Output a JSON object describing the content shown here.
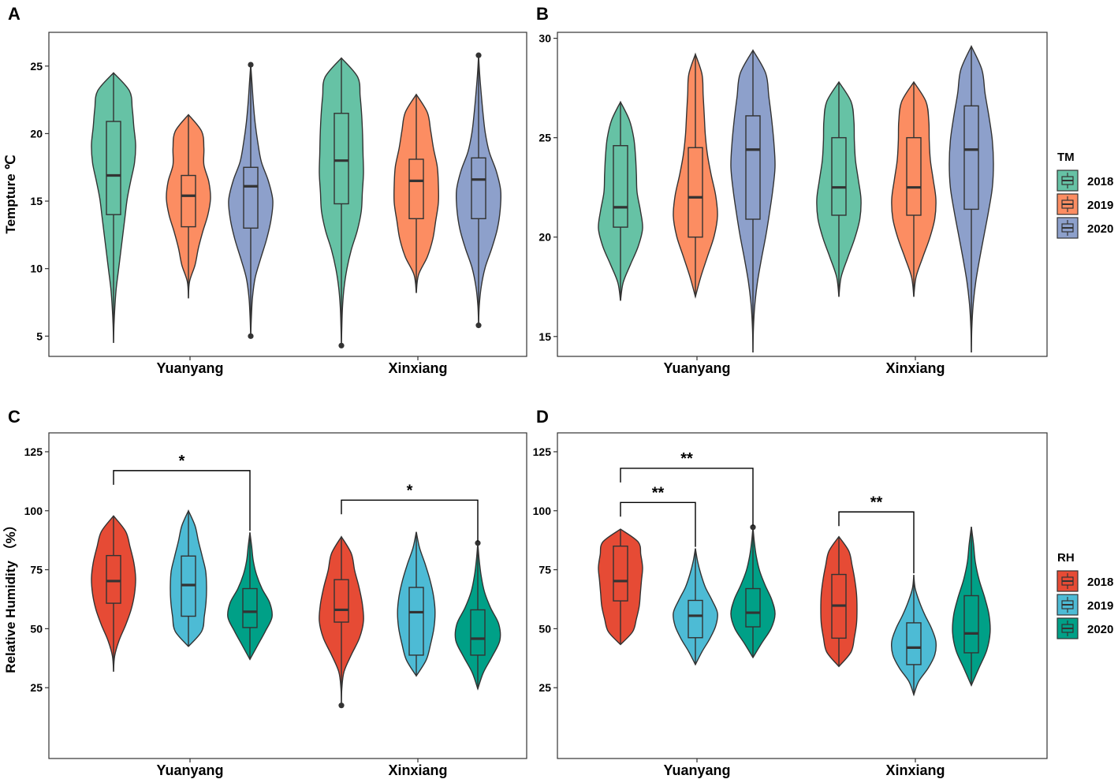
{
  "chart_data": [
    {
      "panel": "A",
      "type": "violin",
      "title": "",
      "ylabel": "Tempture ℃",
      "xlabel": "",
      "ylim": [
        3.5,
        27.5
      ],
      "yticks": [
        5,
        10,
        15,
        20,
        25
      ],
      "categories": [
        "Yuanyang",
        "Xinxiang"
      ],
      "legend_group": "TM",
      "series": [
        {
          "name": "2018",
          "color": "#66C2A5",
          "groups": [
            {
              "category": "Yuanyang",
              "min": 4.5,
              "q1": 14.0,
              "median": 16.9,
              "q3": 20.9,
              "max": 24.5,
              "outliers": [],
              "density": [
                0.02,
                0.06,
                0.12,
                0.22,
                0.32,
                0.42,
                0.52,
                0.62,
                0.78,
                0.95,
                1.0,
                0.92,
                0.85,
                0.72
              ]
            },
            {
              "category": "Xinxiang",
              "min": 4.3,
              "q1": 14.8,
              "median": 18.0,
              "q3": 21.5,
              "max": 25.6,
              "outliers": [
                4.3
              ],
              "density": [
                0.02,
                0.05,
                0.12,
                0.25,
                0.45,
                0.72,
                0.9,
                0.95,
                1.0,
                0.98,
                0.96,
                0.92,
                0.85,
                0.74
              ]
            }
          ]
        },
        {
          "name": "2019",
          "color": "#FC8D62",
          "groups": [
            {
              "category": "Yuanyang",
              "min": 7.8,
              "q1": 13.1,
              "median": 15.4,
              "q3": 16.9,
              "max": 21.4,
              "outliers": [],
              "density": [
                0.05,
                0.3,
                0.45,
                0.65,
                0.88,
                1.0,
                0.92,
                0.7,
                0.7,
                0.6
              ]
            },
            {
              "category": "Xinxiang",
              "min": 8.2,
              "q1": 13.7,
              "median": 16.5,
              "q3": 18.1,
              "max": 22.9,
              "outliers": [],
              "density": [
                0.1,
                0.5,
                0.75,
                0.88,
                1.0,
                1.0,
                0.95,
                0.78,
                0.65,
                0.5
              ]
            }
          ]
        },
        {
          "name": "2020",
          "color": "#8DA0CB",
          "groups": [
            {
              "category": "Yuanyang",
              "min": 5.0,
              "q1": 13.0,
              "median": 16.1,
              "q3": 17.5,
              "max": 25.1,
              "outliers": [
                5.0,
                25.1
              ],
              "density": [
                0.03,
                0.08,
                0.2,
                0.45,
                0.72,
                0.92,
                1.0,
                0.8,
                0.48,
                0.32,
                0.2,
                0.12,
                0.06
              ]
            },
            {
              "category": "Xinxiang",
              "min": 5.8,
              "q1": 13.7,
              "median": 16.6,
              "q3": 18.2,
              "max": 25.8,
              "outliers": [
                5.8,
                25.8
              ],
              "density": [
                0.03,
                0.12,
                0.3,
                0.6,
                0.85,
                0.98,
                1.0,
                0.8,
                0.48,
                0.3,
                0.2,
                0.12,
                0.05
              ]
            }
          ]
        }
      ]
    },
    {
      "panel": "B",
      "type": "violin",
      "title": "",
      "ylabel": "",
      "xlabel": "",
      "ylim": [
        14.0,
        30.3
      ],
      "yticks": [
        15,
        20,
        25,
        30
      ],
      "categories": [
        "Yuanyang",
        "Xinxiang"
      ],
      "legend_group": "TM",
      "series": [
        {
          "name": "2018",
          "color": "#66C2A5",
          "groups": [
            {
              "category": "Yuanyang",
              "min": 16.8,
              "q1": 20.5,
              "median": 21.5,
              "q3": 24.6,
              "max": 26.8,
              "outliers": [],
              "density": [
                0.12,
                0.45,
                0.8,
                1.0,
                0.9,
                0.75,
                0.72,
                0.68,
                0.6,
                0.4
              ]
            },
            {
              "category": "Xinxiang",
              "min": 17.0,
              "q1": 21.1,
              "median": 22.5,
              "q3": 25.0,
              "max": 27.8,
              "outliers": [],
              "density": [
                0.1,
                0.4,
                0.72,
                0.95,
                1.0,
                0.88,
                0.75,
                0.7,
                0.68,
                0.55
              ]
            }
          ]
        },
        {
          "name": "2019",
          "color": "#FC8D62",
          "groups": [
            {
              "category": "Yuanyang",
              "min": 17.0,
              "q1": 20.0,
              "median": 22.0,
              "q3": 24.5,
              "max": 29.2,
              "outliers": [],
              "density": [
                0.25,
                0.55,
                0.85,
                1.0,
                0.92,
                0.72,
                0.55,
                0.45,
                0.4,
                0.35,
                0.3
              ]
            },
            {
              "category": "Xinxiang",
              "min": 17.0,
              "q1": 21.1,
              "median": 22.5,
              "q3": 25.0,
              "max": 27.8,
              "outliers": [],
              "density": [
                0.1,
                0.4,
                0.72,
                0.95,
                1.0,
                0.88,
                0.75,
                0.7,
                0.68,
                0.55
              ]
            }
          ]
        },
        {
          "name": "2020",
          "color": "#8DA0CB",
          "groups": [
            {
              "category": "Yuanyang",
              "min": 14.2,
              "q1": 20.9,
              "median": 24.4,
              "q3": 26.1,
              "max": 29.4,
              "outliers": [],
              "density": [
                0.02,
                0.08,
                0.2,
                0.38,
                0.58,
                0.75,
                0.9,
                1.0,
                0.95,
                0.85,
                0.72,
                0.58
              ]
            },
            {
              "category": "Xinxiang",
              "min": 14.2,
              "q1": 21.4,
              "median": 24.4,
              "q3": 26.6,
              "max": 29.6,
              "outliers": [],
              "density": [
                0.02,
                0.08,
                0.2,
                0.38,
                0.58,
                0.78,
                0.95,
                1.0,
                0.95,
                0.8,
                0.62,
                0.48
              ]
            }
          ]
        }
      ]
    },
    {
      "panel": "C",
      "type": "violin",
      "title": "",
      "ylabel": "Relative Humidity （%）",
      "xlabel": "",
      "ylim": [
        -5,
        133
      ],
      "yticks": [
        25,
        50,
        75,
        100,
        125
      ],
      "categories": [
        "Yuanyang",
        "Xinxiang"
      ],
      "legend_group": "RH",
      "series": [
        {
          "name": "2018",
          "color": "#E64B35",
          "groups": [
            {
              "category": "Yuanyang",
              "min": 31.8,
              "q1": 60.8,
              "median": 70.2,
              "q3": 81.0,
              "max": 97.8,
              "outliers": [],
              "density": [
                0.05,
                0.25,
                0.55,
                0.8,
                0.95,
                1.0,
                0.92,
                0.75,
                0.55
              ]
            },
            {
              "category": "Xinxiang",
              "min": 17.5,
              "q1": 52.8,
              "median": 58.0,
              "q3": 70.8,
              "max": 89.0,
              "outliers": [
                17.5
              ],
              "density": [
                0.02,
                0.12,
                0.45,
                0.82,
                1.0,
                0.95,
                0.8,
                0.6,
                0.45
              ]
            }
          ]
        },
        {
          "name": "2019",
          "color": "#4DBBD5",
          "groups": [
            {
              "category": "Yuanyang",
              "min": 42.5,
              "q1": 55.3,
              "median": 68.5,
              "q3": 80.8,
              "max": 100.0,
              "outliers": [],
              "density": [
                0.6,
                0.72,
                0.8,
                0.82,
                0.78,
                0.62,
                0.45,
                0.3
              ]
            },
            {
              "category": "Xinxiang",
              "min": 30.0,
              "q1": 38.8,
              "median": 57.0,
              "q3": 67.5,
              "max": 91.0,
              "outliers": [],
              "density": [
                0.45,
                0.65,
                0.8,
                0.85,
                0.78,
                0.62,
                0.4,
                0.15
              ]
            }
          ]
        },
        {
          "name": "2020",
          "color": "#00A087",
          "groups": [
            {
              "category": "Yuanyang",
              "min": 37.0,
              "q1": 50.5,
              "median": 57.2,
              "q3": 67.0,
              "max": 90.8,
              "outliers": [],
              "density": [
                0.35,
                0.7,
                1.0,
                0.9,
                0.55,
                0.3,
                0.15,
                0.08
              ]
            },
            {
              "category": "Xinxiang",
              "min": 24.5,
              "q1": 38.8,
              "median": 45.8,
              "q3": 58.0,
              "max": 86.3,
              "outliers": [
                86.3
              ],
              "density": [
                0.25,
                0.65,
                1.0,
                0.95,
                0.58,
                0.3,
                0.15,
                0.06
              ]
            }
          ]
        }
      ],
      "annotations": [
        {
          "label": "*",
          "category": "Yuanyang",
          "from": "2018",
          "to": "2020",
          "level": 117
        },
        {
          "label": "*",
          "category": "Xinxiang",
          "from": "2018",
          "to": "2020",
          "level": 104.5
        }
      ]
    },
    {
      "panel": "D",
      "type": "violin",
      "title": "",
      "ylabel": "",
      "xlabel": "",
      "ylim": [
        -5,
        133
      ],
      "yticks": [
        25,
        50,
        75,
        100,
        125
      ],
      "categories": [
        "Yuanyang",
        "Xinxiang"
      ],
      "legend_group": "RH",
      "series": [
        {
          "name": "2018",
          "color": "#E64B35",
          "groups": [
            {
              "category": "Yuanyang",
              "min": 43.3,
              "q1": 61.8,
              "median": 70.2,
              "q3": 85.0,
              "max": 92.2,
              "outliers": [],
              "density": [
                0.55,
                0.72,
                0.85,
                0.9,
                0.95,
                1.0,
                0.92,
                0.8
              ]
            },
            {
              "category": "Xinxiang",
              "min": 34.0,
              "q1": 46.0,
              "median": 59.8,
              "q3": 73.0,
              "max": 89.0,
              "outliers": [],
              "density": [
                0.55,
                0.7,
                0.8,
                0.82,
                0.8,
                0.72,
                0.6,
                0.45
              ]
            }
          ]
        },
        {
          "name": "2019",
          "color": "#4DBBD5",
          "groups": [
            {
              "category": "Yuanyang",
              "min": 34.8,
              "q1": 46.2,
              "median": 55.5,
              "q3": 62.0,
              "max": 84.0,
              "outliers": [],
              "density": [
                0.3,
                0.65,
                0.92,
                1.0,
                0.75,
                0.45,
                0.25,
                0.1
              ]
            },
            {
              "category": "Xinxiang",
              "min": 22.0,
              "q1": 34.8,
              "median": 42.0,
              "q3": 52.5,
              "max": 72.8,
              "outliers": [],
              "density": [
                0.22,
                0.65,
                0.95,
                1.0,
                0.8,
                0.5,
                0.25,
                0.06
              ]
            }
          ]
        },
        {
          "name": "2020",
          "color": "#00A087",
          "groups": [
            {
              "category": "Yuanyang",
              "min": 37.8,
              "q1": 50.8,
              "median": 56.8,
              "q3": 67.0,
              "max": 93.0,
              "outliers": [
                93.0
              ],
              "density": [
                0.4,
                0.82,
                1.0,
                0.85,
                0.55,
                0.3,
                0.15,
                0.06
              ]
            },
            {
              "category": "Xinxiang",
              "min": 26.0,
              "q1": 39.8,
              "median": 48.0,
              "q3": 64.0,
              "max": 93.2,
              "outliers": [],
              "density": [
                0.35,
                0.7,
                0.85,
                0.8,
                0.6,
                0.35,
                0.18,
                0.1
              ]
            }
          ]
        }
      ],
      "annotations": [
        {
          "label": "**",
          "category": "Yuanyang",
          "from": "2018",
          "to": "2019",
          "level": 103.5
        },
        {
          "label": "**",
          "category": "Yuanyang",
          "from": "2018",
          "to": "2020",
          "level": 118
        },
        {
          "label": "**",
          "category": "Xinxiang",
          "from": "2018",
          "to": "2019",
          "level": 99.5
        }
      ]
    }
  ],
  "legends": [
    {
      "title": "TM",
      "items": [
        {
          "label": "2018",
          "color": "#66C2A5"
        },
        {
          "label": "2019",
          "color": "#FC8D62"
        },
        {
          "label": "2020",
          "color": "#8DA0CB"
        }
      ]
    },
    {
      "title": "RH",
      "items": [
        {
          "label": "2018",
          "color": "#E64B35"
        },
        {
          "label": "2019",
          "color": "#4DBBD5"
        },
        {
          "label": "2020",
          "color": "#00A087"
        }
      ]
    }
  ]
}
